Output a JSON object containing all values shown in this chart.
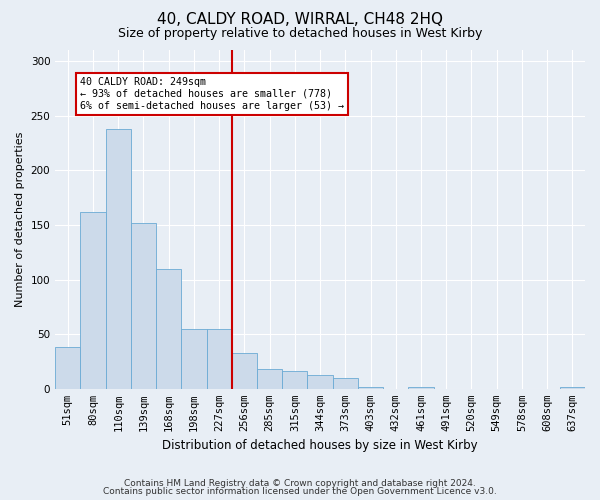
{
  "title": "40, CALDY ROAD, WIRRAL, CH48 2HQ",
  "subtitle": "Size of property relative to detached houses in West Kirby",
  "xlabel": "Distribution of detached houses by size in West Kirby",
  "ylabel": "Number of detached properties",
  "footer_line1": "Contains HM Land Registry data © Crown copyright and database right 2024.",
  "footer_line2": "Contains public sector information licensed under the Open Government Licence v3.0.",
  "annotation_line1": "40 CALDY ROAD: 249sqm",
  "annotation_line2": "← 93% of detached houses are smaller (778)",
  "annotation_line3": "6% of semi-detached houses are larger (53) →",
  "bar_color": "#ccdaea",
  "bar_edge_color": "#6aaad4",
  "red_line_color": "#cc0000",
  "annotation_box_color": "#ffffff",
  "annotation_box_edge_color": "#cc0000",
  "categories": [
    "51sqm",
    "80sqm",
    "110sqm",
    "139sqm",
    "168sqm",
    "198sqm",
    "227sqm",
    "256sqm",
    "285sqm",
    "315sqm",
    "344sqm",
    "373sqm",
    "403sqm",
    "432sqm",
    "461sqm",
    "491sqm",
    "520sqm",
    "549sqm",
    "578sqm",
    "608sqm",
    "637sqm"
  ],
  "values": [
    38,
    162,
    238,
    152,
    110,
    55,
    55,
    33,
    18,
    16,
    13,
    10,
    2,
    0,
    2,
    0,
    0,
    0,
    0,
    0,
    2
  ],
  "red_line_index": 7,
  "ylim": [
    0,
    310
  ],
  "yticks": [
    0,
    50,
    100,
    150,
    200,
    250,
    300
  ],
  "background_color": "#e8eef5",
  "title_fontsize": 11,
  "subtitle_fontsize": 9,
  "ylabel_fontsize": 8,
  "xlabel_fontsize": 8.5,
  "tick_fontsize": 7.5,
  "footer_fontsize": 6.5
}
